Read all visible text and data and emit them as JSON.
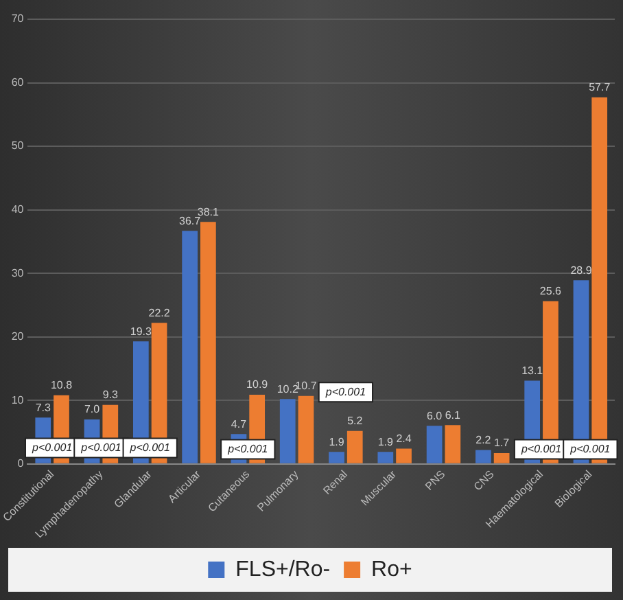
{
  "chart_data": {
    "type": "bar",
    "categories": [
      "Constitutional",
      "Lymphadenopathy",
      "Glandular",
      "Articular",
      "Cutaneous",
      "Pulmonary",
      "Renal",
      "Muscular",
      "PNS",
      "CNS",
      "Haematological",
      "Biological"
    ],
    "series": [
      {
        "name": "FLS+/Ro-",
        "color": "#4472c4",
        "values": [
          7.3,
          7.0,
          19.3,
          36.7,
          4.7,
          10.2,
          1.9,
          1.9,
          6.0,
          2.2,
          13.1,
          28.9
        ],
        "value_labels": [
          "7.3",
          "7.0",
          "19.3",
          "36.7",
          "4.7",
          "10.2",
          "1.9",
          "1.9",
          "6.0",
          "2.2",
          "13.1",
          "28.9"
        ]
      },
      {
        "name": "Ro+",
        "color": "#ed7d31",
        "values": [
          10.8,
          9.3,
          22.2,
          38.1,
          10.9,
          10.7,
          5.2,
          2.4,
          6.1,
          1.7,
          25.6,
          57.7
        ],
        "value_labels": [
          "10.8",
          "9.3",
          "22.2",
          "38.1",
          "10.9",
          "10.7",
          "5.2",
          "2.4",
          "6.1",
          "1.7",
          "25.6",
          "57.7"
        ]
      }
    ],
    "ylim": [
      0,
      70
    ],
    "yticks": [
      0,
      10,
      20,
      30,
      40,
      50,
      60,
      70
    ],
    "grid": "y",
    "legend": "bottom",
    "annotations": [
      {
        "text": "p<0.001",
        "x": "Constitutional",
        "y": 2.5
      },
      {
        "text": "p<0.001",
        "x": "Lymphadenopathy",
        "y": 2.5
      },
      {
        "text": "p<0.001",
        "x": "Glandular",
        "y": 2.5
      },
      {
        "text": "p<0.001",
        "x": "Cutaneous",
        "y": 2.3
      },
      {
        "text": "p<0.001",
        "x": "Renal",
        "y": 11.3
      },
      {
        "text": "p<0.001",
        "x": "Haematological",
        "y": 2.3
      },
      {
        "text": "p<0.001",
        "x": "Biological",
        "y": 2.3
      }
    ]
  }
}
